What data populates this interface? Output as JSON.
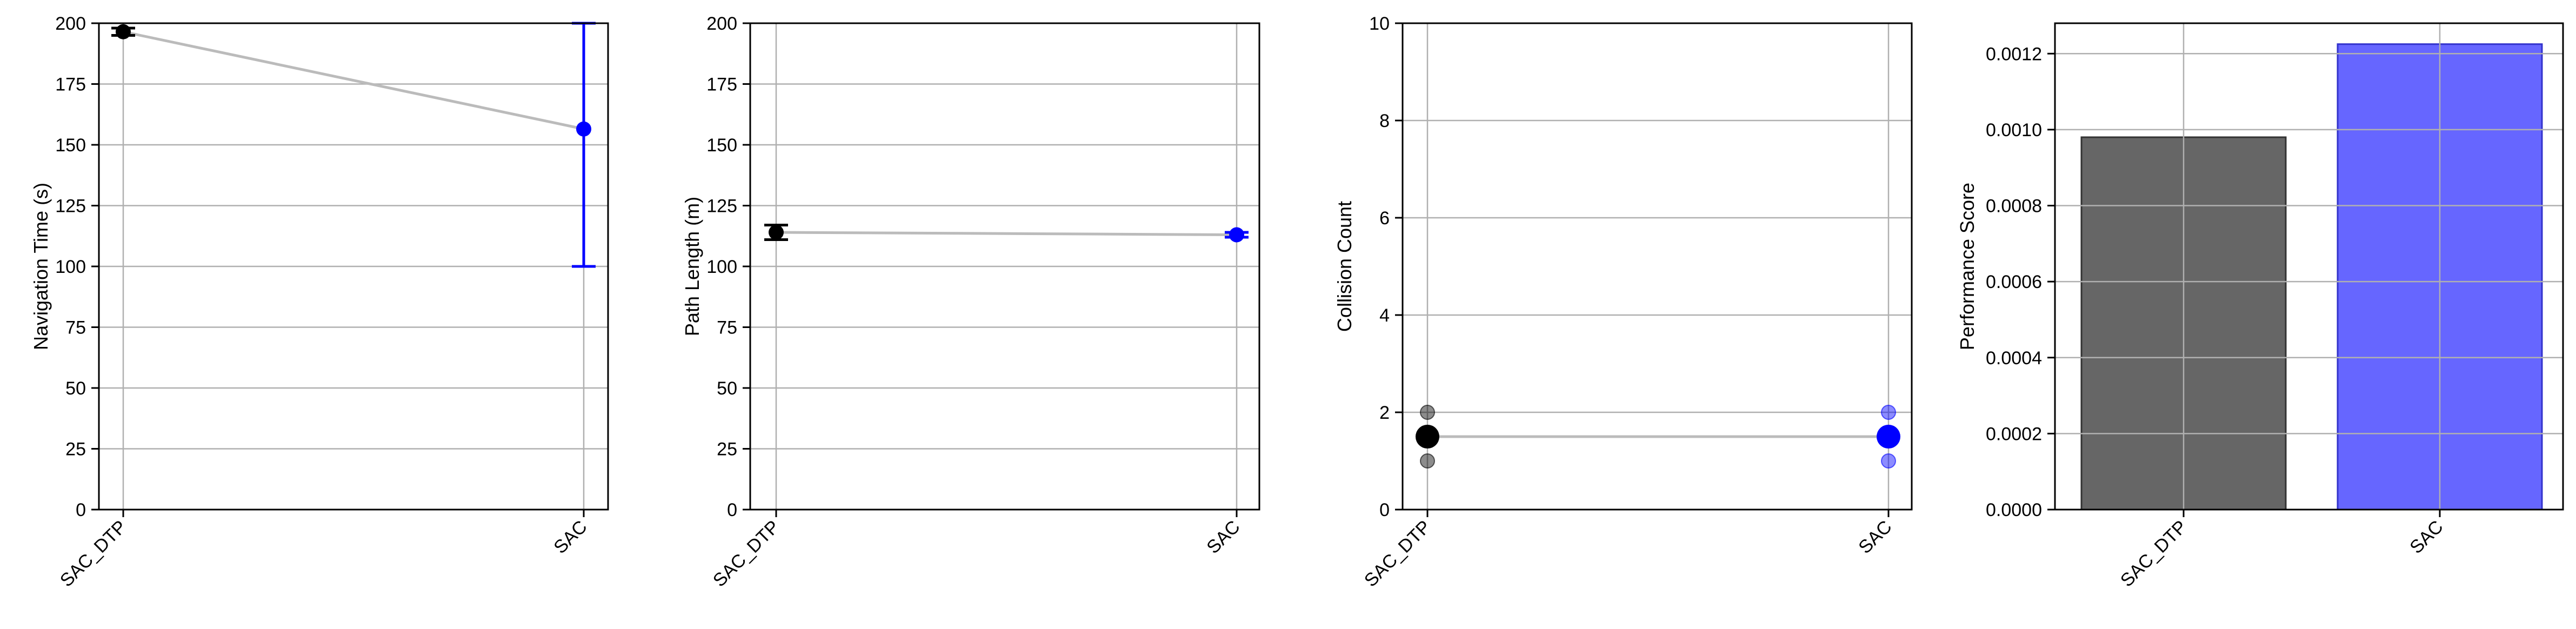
{
  "chart_data": [
    {
      "type": "line",
      "categories": [
        "SAC_DTP",
        "SAC"
      ],
      "xtick_rotation": 45,
      "ylabel": "Navigation Time (s)",
      "ylim": [
        0,
        200
      ],
      "yticks": [
        0,
        25,
        50,
        75,
        100,
        125,
        150,
        175,
        200
      ],
      "ytick_labels": [
        "0",
        "25",
        "50",
        "75",
        "100",
        "125",
        "150",
        "175",
        "200"
      ],
      "grid": true,
      "connector_color": "#bbbbbb",
      "points": [
        {
          "category": "SAC_DTP",
          "value": 196.5,
          "err_low": 195,
          "err_high": 198,
          "color": "#000000"
        },
        {
          "category": "SAC",
          "value": 156.5,
          "err_low": 100,
          "err_high": 200,
          "color": "#0000ff"
        }
      ]
    },
    {
      "type": "line",
      "categories": [
        "SAC_DTP",
        "SAC"
      ],
      "xtick_rotation": 45,
      "ylabel": "Path Length (m)",
      "ylim": [
        0,
        200
      ],
      "yticks": [
        0,
        25,
        50,
        75,
        100,
        125,
        150,
        175,
        200
      ],
      "ytick_labels": [
        "0",
        "25",
        "50",
        "75",
        "100",
        "125",
        "150",
        "175",
        "200"
      ],
      "grid": true,
      "connector_color": "#bbbbbb",
      "points": [
        {
          "category": "SAC_DTP",
          "value": 114,
          "err_low": 111,
          "err_high": 117,
          "color": "#000000"
        },
        {
          "category": "SAC",
          "value": 113,
          "err_low": 112,
          "err_high": 114,
          "color": "#0000ff"
        }
      ]
    },
    {
      "type": "scatter",
      "categories": [
        "SAC_DTP",
        "SAC"
      ],
      "xtick_rotation": 45,
      "ylabel": "Collision Count",
      "ylim": [
        0,
        10
      ],
      "yticks": [
        0,
        2,
        4,
        6,
        8,
        10
      ],
      "ytick_labels": [
        "0",
        "2",
        "4",
        "6",
        "8",
        "10"
      ],
      "grid": true,
      "connector_color": "#bbbbbb",
      "points": [
        {
          "category": "SAC_DTP",
          "mean": 1.5,
          "runs": [
            1,
            2
          ],
          "color": "#000000"
        },
        {
          "category": "SAC",
          "mean": 1.5,
          "runs": [
            1,
            2
          ],
          "color": "#0000ff"
        }
      ]
    },
    {
      "type": "bar",
      "categories": [
        "SAC_DTP",
        "SAC"
      ],
      "xtick_rotation": 45,
      "values": [
        0.00098,
        0.001225
      ],
      "colors": [
        "#666666",
        "#6666ff"
      ],
      "edge_colors": [
        "#333333",
        "#3333cc"
      ],
      "ylabel": "Performance Score",
      "ylim": [
        0,
        0.00128
      ],
      "yticks": [
        0,
        0.0002,
        0.0004,
        0.0006,
        0.0008,
        0.001,
        0.0012
      ],
      "ytick_labels": [
        "0.0000",
        "0.0002",
        "0.0004",
        "0.0006",
        "0.0008",
        "0.0010",
        "0.0012"
      ],
      "grid": true
    }
  ]
}
